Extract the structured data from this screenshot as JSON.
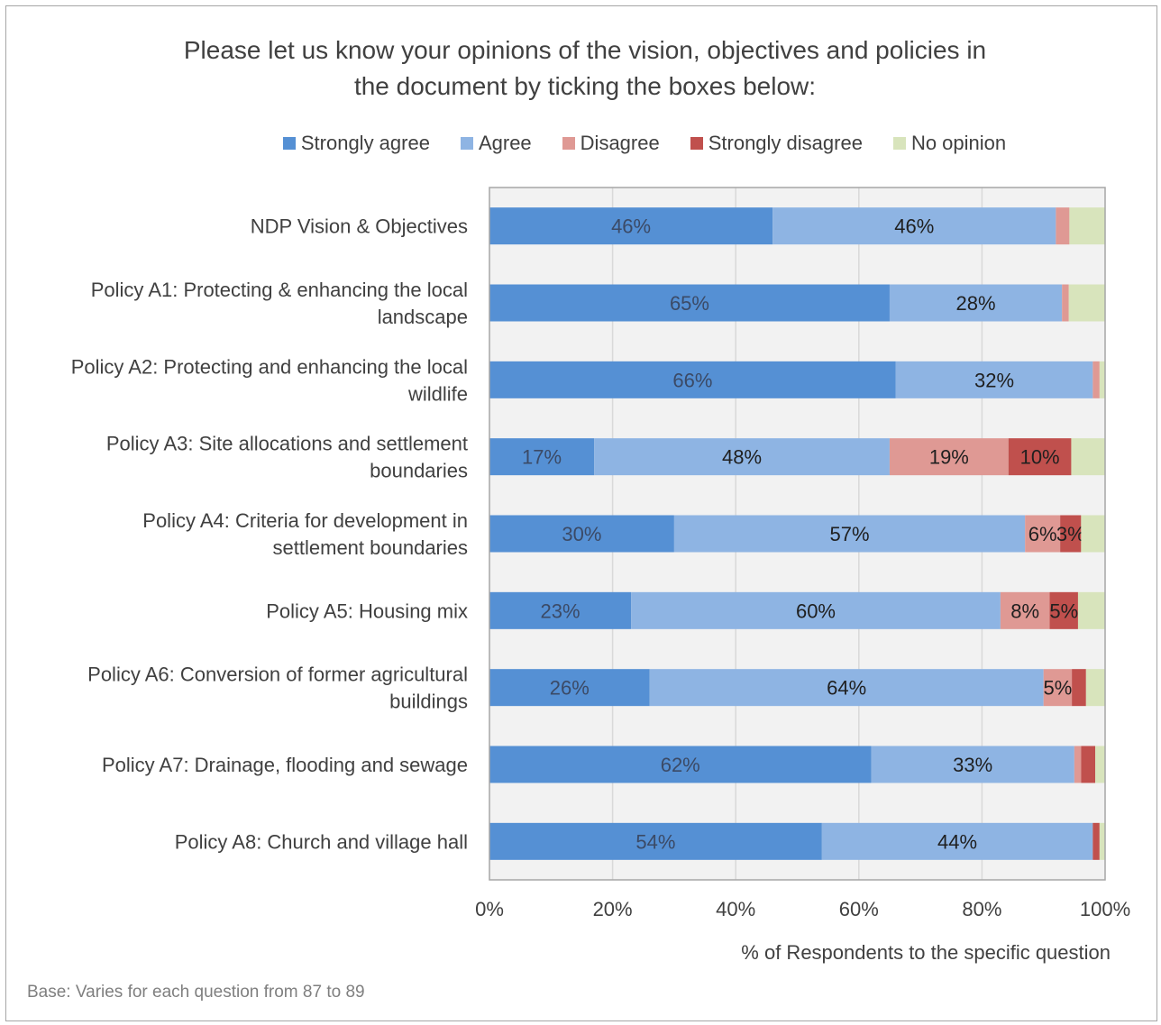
{
  "chart_data": {
    "type": "bar",
    "orientation": "horizontal-stacked-100",
    "title_line1": "Please let us know your opinions of the vision, objectives and policies in",
    "title_line2": "the document by ticking the boxes below:",
    "xlabel": "% of Respondents to the specific question",
    "xlim": [
      0,
      100
    ],
    "x_ticks": [
      "0%",
      "20%",
      "40%",
      "60%",
      "80%",
      "100%"
    ],
    "grid": true,
    "legend_position": "top",
    "categories": [
      "NDP Vision & Objectives",
      "Policy A1: Protecting & enhancing the local landscape",
      "Policy A2: Protecting and enhancing the local wildlife",
      "Policy A3: Site allocations and settlement boundaries",
      "Policy A4: Criteria for development in settlement boundaries",
      "Policy A5: Housing mix",
      "Policy A6: Conversion of former agricultural buildings",
      "Policy A7: Drainage, flooding and sewage",
      "Policy A8: Church and village hall"
    ],
    "category_lines": [
      [
        "NDP Vision & Objectives"
      ],
      [
        "Policy A1: Protecting & enhancing the local",
        "landscape"
      ],
      [
        "Policy A2: Protecting and enhancing the local",
        "wildlife"
      ],
      [
        "Policy A3: Site allocations and settlement",
        "boundaries"
      ],
      [
        "Policy A4: Criteria for development in",
        "settlement boundaries"
      ],
      [
        "Policy A5: Housing mix"
      ],
      [
        "Policy A6: Conversion of former agricultural",
        "buildings"
      ],
      [
        "Policy A7: Drainage, flooding and sewage"
      ],
      [
        "Policy A8: Church and village hall"
      ]
    ],
    "series": [
      {
        "name": "Strongly agree",
        "color": "#5590d4",
        "label_color": "#3b4a66",
        "values": [
          46,
          65,
          66,
          17,
          30,
          23,
          26,
          62,
          54
        ],
        "labels": [
          "46%",
          "65%",
          "66%",
          "17%",
          "30%",
          "23%",
          "26%",
          "62%",
          "54%"
        ]
      },
      {
        "name": "Agree",
        "color": "#8eb4e3",
        "label_color": "#1f1f1f",
        "values": [
          46,
          28,
          32,
          48,
          57,
          60,
          64,
          33,
          44
        ],
        "labels": [
          "46%",
          "28%",
          "32%",
          "48%",
          "57%",
          "60%",
          "64%",
          "33%",
          "44%"
        ]
      },
      {
        "name": "Disagree",
        "color": "#df9994",
        "label_color": "#1f1f1f",
        "values": [
          2.2,
          1.1,
          1.1,
          19.3,
          5.7,
          8,
          4.6,
          1.1,
          0
        ],
        "labels": [
          "",
          "",
          "",
          "19%",
          "6%",
          "8%",
          "5%",
          "",
          ""
        ]
      },
      {
        "name": "Strongly disagree",
        "color": "#c0504d",
        "label_color": "#1f1f1f",
        "values": [
          0,
          0,
          0,
          10.2,
          3.4,
          4.6,
          2.3,
          2.3,
          1.1
        ],
        "labels": [
          "",
          "",
          "",
          "10%",
          "3%",
          "5%",
          "",
          "",
          ""
        ]
      },
      {
        "name": "No opinion",
        "color": "#d8e4bc",
        "label_color": "#1f1f1f",
        "values": [
          5.8,
          5.9,
          0.9,
          5.5,
          3.9,
          4.4,
          3.1,
          1.6,
          0.9
        ],
        "labels": [
          "",
          "",
          "",
          "",
          "",
          "",
          "",
          "",
          ""
        ]
      }
    ]
  },
  "footnote": "Base: Varies for each question from 87 to 89"
}
